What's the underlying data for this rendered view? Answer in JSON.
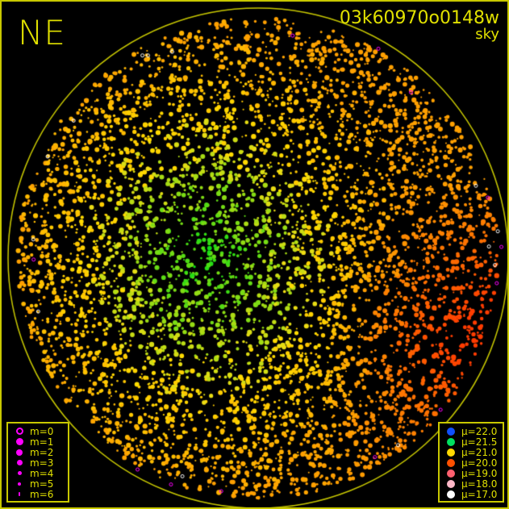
{
  "header": {
    "direction": "NE",
    "frame_id": "03k60970o0148w",
    "mode": "sky"
  },
  "magnitude_legend": {
    "color": "#ff00ff",
    "items": [
      {
        "label": "m=0",
        "hollow": true
      },
      {
        "label": "m=1"
      },
      {
        "label": "m=2"
      },
      {
        "label": "m=3"
      },
      {
        "label": "m=4"
      },
      {
        "label": "m=5"
      },
      {
        "label": "m=6"
      }
    ]
  },
  "brightness_legend": {
    "items": [
      {
        "label": "μ=22.0",
        "color": "#1050ff"
      },
      {
        "label": "μ=21.5",
        "color": "#00e060"
      },
      {
        "label": "μ=21.0",
        "color": "#ffd800"
      },
      {
        "label": "μ=20.0",
        "color": "#ff5000"
      },
      {
        "label": "μ=19.0",
        "color": "#ff6070"
      },
      {
        "label": "μ=18.0",
        "color": "#ffb8c8"
      },
      {
        "label": "μ=17.0",
        "color": "#ffffff"
      }
    ]
  },
  "colors": {
    "frame": "#c8c800",
    "text": "#e0e000",
    "background": "#000000"
  }
}
